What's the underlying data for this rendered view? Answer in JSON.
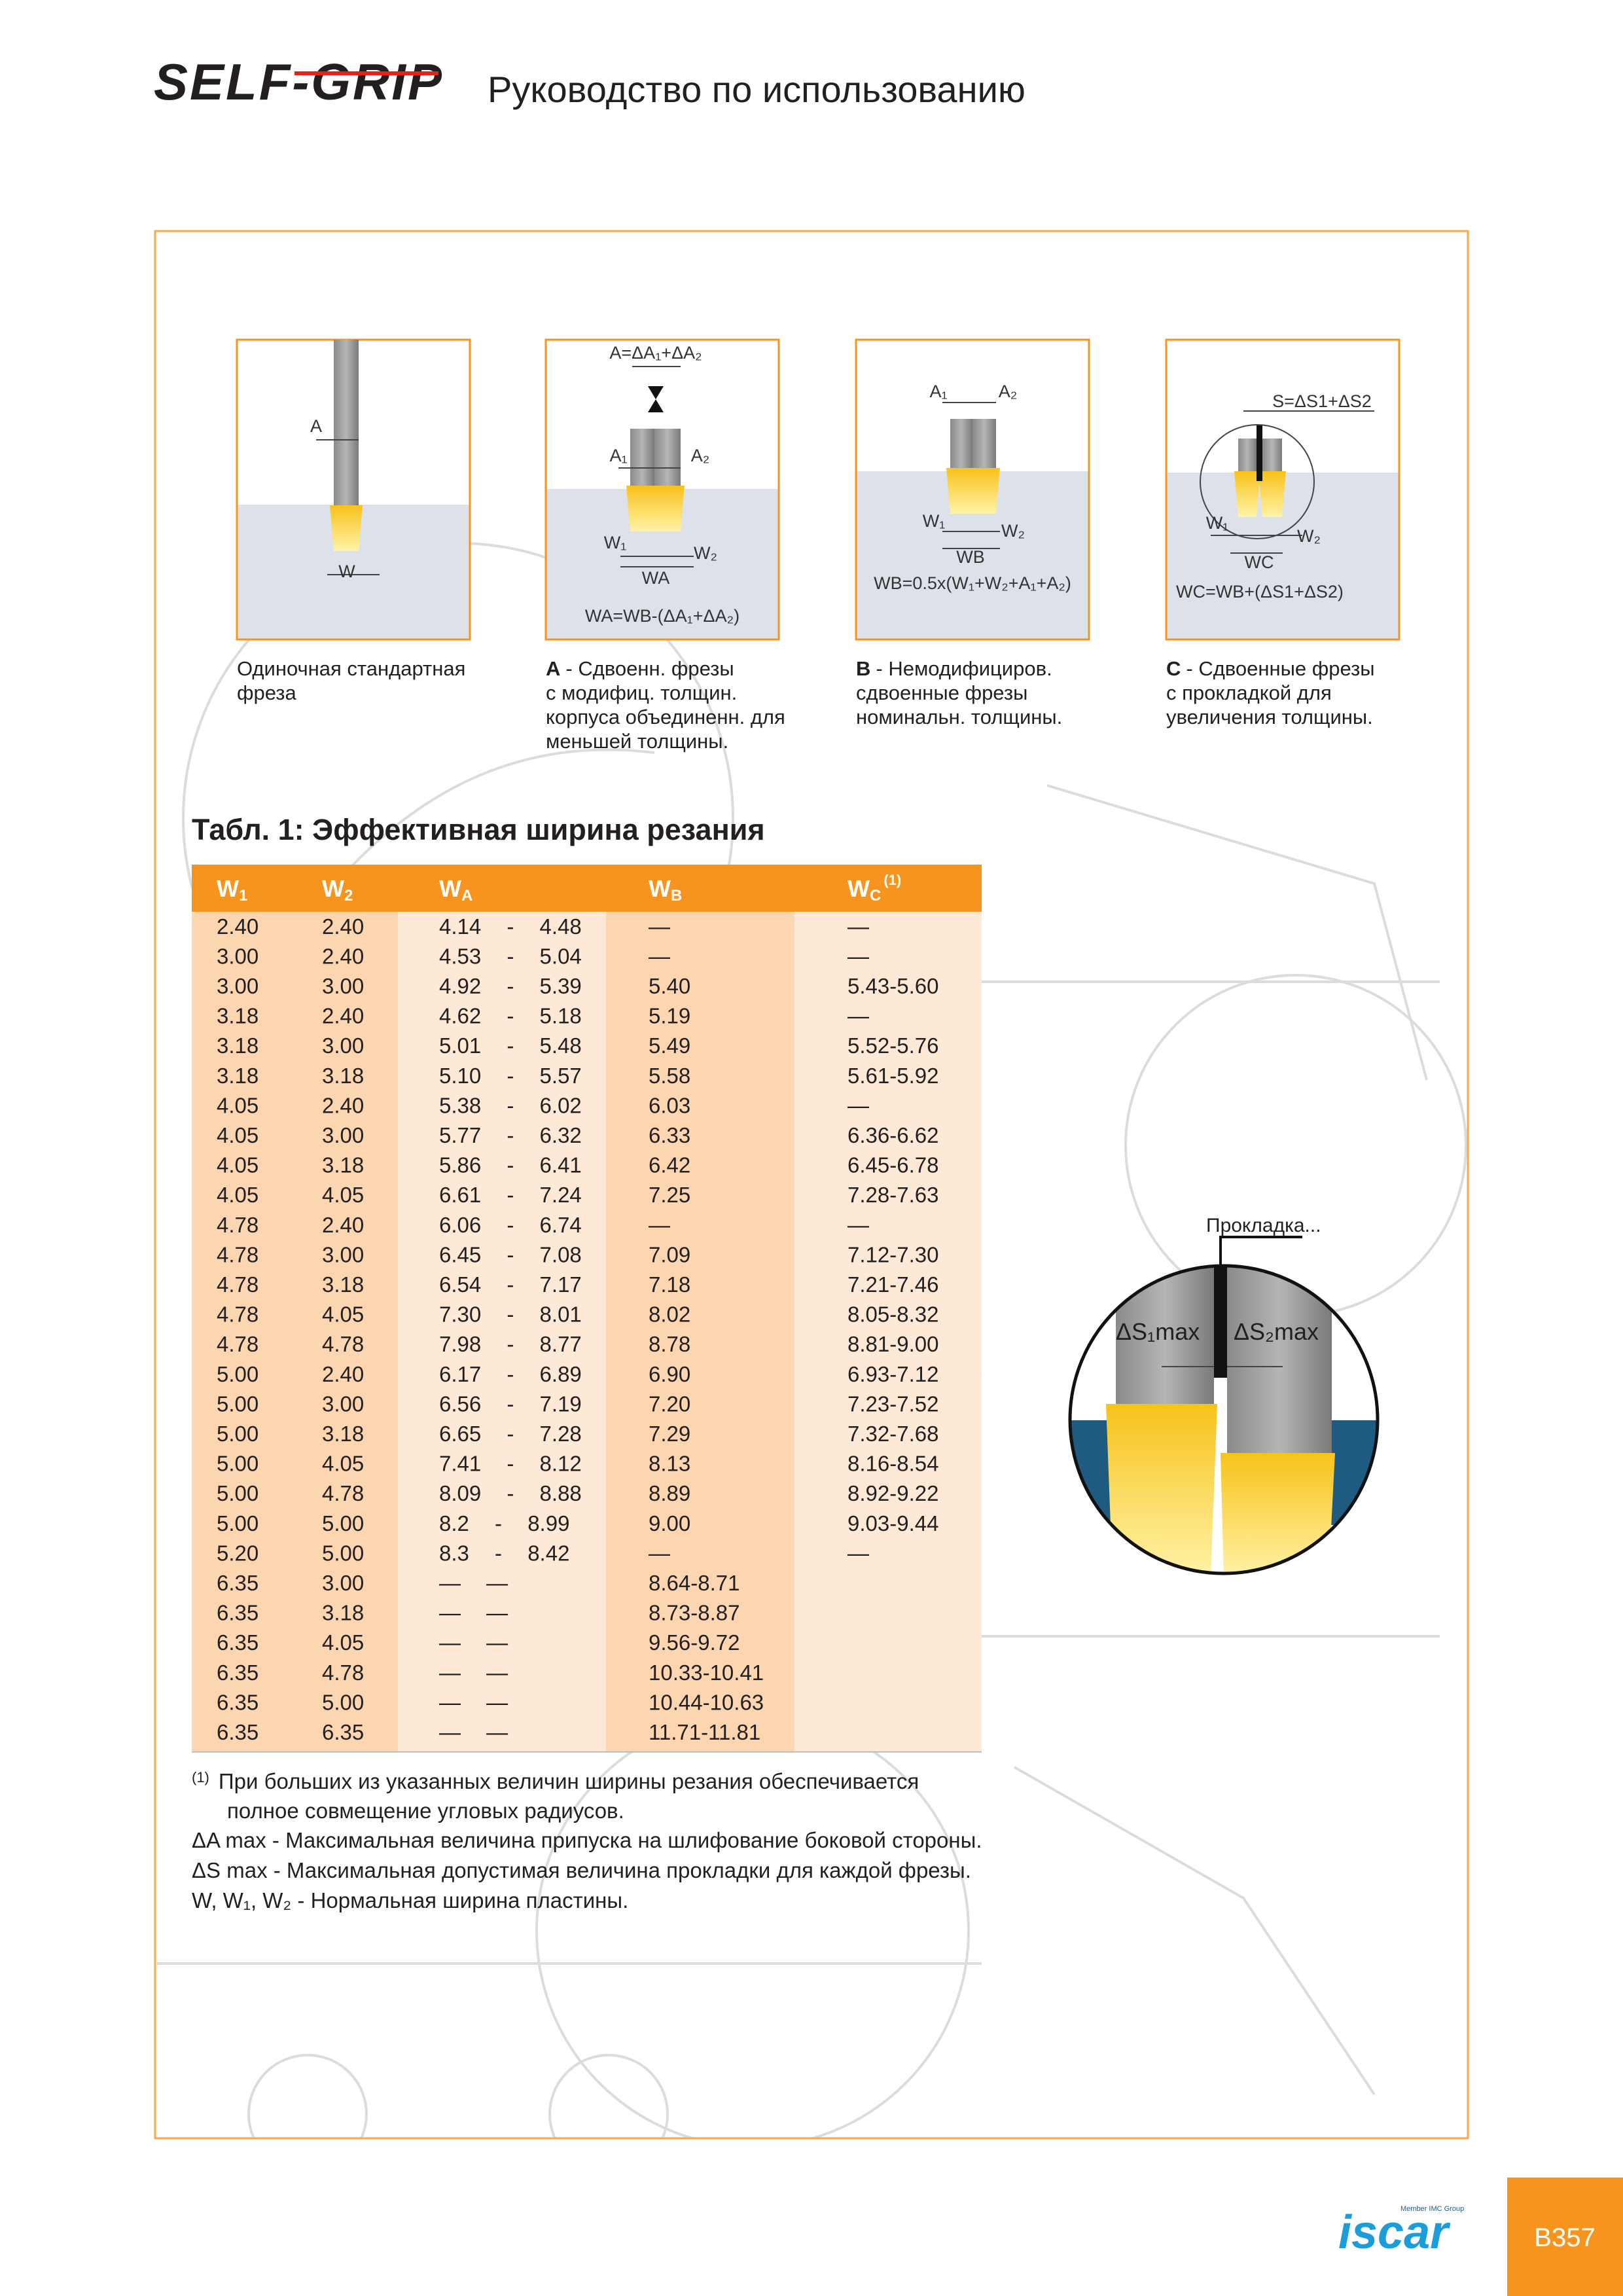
{
  "header": {
    "brand": "SELF-GRIP",
    "title": "Руководство по использованию"
  },
  "diagrams": [
    {
      "labels": [
        "A",
        "W"
      ],
      "caption": {
        "lines": [
          "Одиночная стандартная",
          "фреза"
        ]
      }
    },
    {
      "labels": [
        "A=ΔA₁+ΔA₂",
        "A₁",
        "A₂",
        "W₁",
        "W₂",
        "WA",
        "WA=WB-(ΔA₁+ΔA₂)"
      ],
      "caption": {
        "letter": "A",
        "lines": [
          "- Сдвоенн. фрезы",
          "с модифиц. толщин.",
          "корпуса объединенн. для",
          "меньшей толщины."
        ]
      }
    },
    {
      "labels": [
        "A₁",
        "A₂",
        "W₁",
        "W₂",
        "WB",
        "WB=0.5x(W₁+W₂+A₁+A₂)"
      ],
      "caption": {
        "letter": "B",
        "lines": [
          "- Немодифициров.",
          "сдвоенные фрезы",
          "номинальн. толщины."
        ]
      }
    },
    {
      "labels": [
        "S=ΔS1+ΔS2",
        "W₁",
        "W₂",
        "WC",
        "WC=WB+(ΔS1+ΔS2)"
      ],
      "caption": {
        "letter": "C",
        "lines": [
          "- Сдвоенные фрезы",
          "с прокладкой для",
          "увеличения толщины."
        ]
      }
    }
  ],
  "inset": {
    "label": "Прокладка...",
    "s1": "ΔS₁max",
    "s2": "ΔS₂max"
  },
  "table": {
    "title": "Табл. 1: Эффективная ширина резания",
    "columns": [
      {
        "text": "W",
        "sub": "1"
      },
      {
        "text": "W",
        "sub": "2"
      },
      {
        "text": "W",
        "sub": "A"
      },
      {
        "text": "W",
        "sub": "B"
      },
      {
        "text": "W",
        "sub": "C",
        "sup": "(1)"
      }
    ],
    "rows": [
      [
        "2.40",
        "2.40",
        "4.14 - 4.48",
        "—",
        "—"
      ],
      [
        "3.00",
        "2.40",
        "4.53 - 5.04",
        "—",
        "—"
      ],
      [
        "3.00",
        "3.00",
        "4.92 - 5.39",
        "5.40",
        "5.43-5.60"
      ],
      [
        "3.18",
        "2.40",
        "4.62 - 5.18",
        "5.19",
        "—"
      ],
      [
        "3.18",
        "3.00",
        "5.01 - 5.48",
        "5.49",
        "5.52-5.76"
      ],
      [
        "3.18",
        "3.18",
        "5.10 - 5.57",
        "5.58",
        "5.61-5.92"
      ],
      [
        "4.05",
        "2.40",
        "5.38 - 6.02",
        "6.03",
        "—"
      ],
      [
        "4.05",
        "3.00",
        "5.77 - 6.32",
        "6.33",
        "6.36-6.62"
      ],
      [
        "4.05",
        "3.18",
        "5.86 - 6.41",
        "6.42",
        "6.45-6.78"
      ],
      [
        "4.05",
        "4.05",
        "6.61 - 7.24",
        "7.25",
        "7.28-7.63"
      ],
      [
        "4.78",
        "2.40",
        "6.06 - 6.74",
        "—",
        "—"
      ],
      [
        "4.78",
        "3.00",
        "6.45 - 7.08",
        "7.09",
        "7.12-7.30"
      ],
      [
        "4.78",
        "3.18",
        "6.54 - 7.17",
        "7.18",
        "7.21-7.46"
      ],
      [
        "4.78",
        "4.05",
        "7.30 - 8.01",
        "8.02",
        "8.05-8.32"
      ],
      [
        "4.78",
        "4.78",
        "7.98 - 8.77",
        "8.78",
        "8.81-9.00"
      ],
      [
        "5.00",
        "2.40",
        "6.17 - 6.89",
        "6.90",
        "6.93-7.12"
      ],
      [
        "5.00",
        "3.00",
        "6.56 - 7.19",
        "7.20",
        "7.23-7.52"
      ],
      [
        "5.00",
        "3.18",
        "6.65 - 7.28",
        "7.29",
        "7.32-7.68"
      ],
      [
        "5.00",
        "4.05",
        "7.41 - 8.12",
        "8.13",
        "8.16-8.54"
      ],
      [
        "5.00",
        "4.78",
        "8.09 - 8.88",
        "8.89",
        "8.92-9.22"
      ],
      [
        "5.00",
        "5.00",
        "8.2 - 8.99",
        "9.00",
        "9.03-9.44"
      ],
      [
        "5.20",
        "5.00",
        "8.3 - 8.42",
        "—",
        "—"
      ],
      [
        "6.35",
        "3.00",
        "— —",
        "8.64-8.71"
      ],
      [
        "6.35",
        "3.18",
        "— —",
        "8.73-8.87"
      ],
      [
        "6.35",
        "4.05",
        "— —",
        "9.56-9.72"
      ],
      [
        "6.35",
        "4.78",
        "— —",
        "10.33-10.41"
      ],
      [
        "6.35",
        "5.00",
        "— —",
        "10.44-10.63"
      ],
      [
        "6.35",
        "6.35",
        "— —",
        "11.71-11.81"
      ]
    ]
  },
  "footnotes": {
    "note_mark": "(1)",
    "note_lines": [
      "При больших из указанных величин ширины резания обеспечивается",
      "полное совмещение угловых радиусов."
    ],
    "lines": [
      "ΔA max - Максимальная величина припуска на шлифование боковой стороны.",
      "ΔS max - Максимальная допустимая величина прокладки для каждой фрезы.",
      "W, W₁, W₂ - Нормальная ширина пластины."
    ]
  },
  "footer": {
    "logo": "iscar",
    "logo_tagline": "Member IMC Group",
    "page": "B357"
  }
}
